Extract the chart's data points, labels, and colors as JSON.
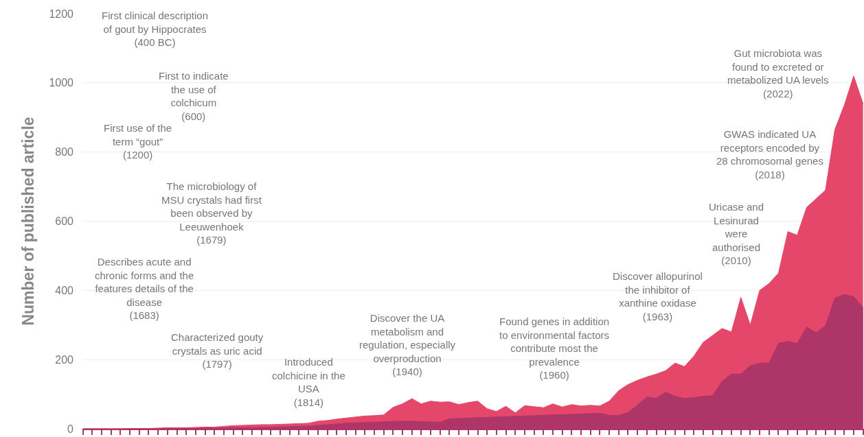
{
  "chart_data": {
    "type": "area",
    "ylabel": "Number of published article",
    "categories": [
      null,
      null,
      null,
      null,
      null,
      null,
      null,
      null,
      null,
      null,
      null,
      null,
      null,
      null,
      null,
      null,
      null,
      null,
      null,
      null,
      null,
      null,
      null,
      null,
      null,
      null,
      null,
      null,
      null,
      null,
      null,
      null,
      null,
      null,
      null,
      null,
      null,
      null,
      null,
      null,
      null,
      null,
      null,
      null,
      null,
      null,
      null,
      null,
      null,
      null,
      null,
      null,
      null,
      null,
      null,
      null,
      null,
      null,
      null,
      null,
      null,
      null,
      null,
      null,
      null,
      null,
      null,
      null,
      null,
      null,
      null,
      null,
      null,
      null,
      null,
      null,
      null,
      null,
      null,
      null,
      null,
      null,
      null,
      null
    ],
    "series": [
      {
        "color": "#e5476a",
        "values": [
          0,
          0,
          0,
          0,
          0,
          1,
          1,
          1,
          2,
          3,
          3,
          3,
          4,
          5,
          5,
          7,
          9,
          10,
          11,
          12,
          12,
          13,
          14,
          15,
          16,
          22,
          24,
          28,
          31,
          34,
          37,
          38,
          40,
          62,
          72,
          87,
          72,
          80,
          77,
          78,
          70,
          76,
          80,
          58,
          50,
          65,
          46,
          67,
          64,
          61,
          72,
          63,
          70,
          66,
          68,
          66,
          80,
          110,
          128,
          140,
          150,
          158,
          168,
          190,
          180,
          210,
          250,
          270,
          290,
          280,
          380,
          300,
          400,
          420,
          450,
          570,
          560,
          640,
          665,
          690,
          865,
          935,
          1020,
          940
        ]
      },
      {
        "color": "#ad3567",
        "values": [
          0,
          0,
          0,
          0,
          0,
          0,
          0,
          0,
          0,
          1,
          1,
          1,
          1,
          2,
          2,
          2,
          3,
          3,
          3,
          4,
          4,
          5,
          6,
          7,
          8,
          10,
          12,
          14,
          16,
          17,
          18,
          19,
          20,
          21,
          22,
          22,
          21,
          20,
          19,
          29,
          30,
          31,
          32,
          33,
          34,
          35,
          36,
          37,
          38,
          39,
          40,
          41,
          42,
          43,
          44,
          45,
          39,
          38,
          47,
          68,
          92,
          88,
          106,
          94,
          88,
          90,
          94,
          96,
          137,
          158,
          158,
          182,
          190,
          190,
          247,
          253,
          247,
          294,
          278,
          298,
          378,
          388,
          382,
          350
        ]
      }
    ],
    "ylim": [
      0,
      1200
    ],
    "yticks": [
      0,
      200,
      400,
      600,
      800,
      1000,
      1200
    ],
    "grid": "y",
    "tick_labels": "y",
    "annotations": [
      "First clinical description\nof gout by Hippocrates\n(400 BC)",
      "First to indicate\nthe use of\ncolchicum\n(600)",
      "First use of the\nterm “gout”\n(1200)",
      "The microbiology of\nMSU crystals had first\nbeen observed by\nLeeuwenhoek\n(1679)",
      "Describes acute and\nchronic forms and the\nfeatures details of the\ndisease\n(1683)",
      "Characterized gouty\ncrystals as uric acid\n(1797)",
      "Introduced\ncolchicine in the\nUSA\n(1814)",
      "Discover the UA\nmetabolism and\nregulation, especially\noverproduction\n(1940)",
      "Found genes in addition\nto environmental factors\ncontribute most the\nprevalence\n(1960)",
      "Discover allopurinol\nthe inhibitor of\nxanthine oxidase\n(1963)",
      "Uricase and\nLesinurad\nwere\nauthorised\n(2010)",
      "GWAS indicated UA\nreceptors encoded by\n28 chromosomal genes\n(2018)",
      "Gut microbiota was\nfound to excreted or\nmetabolized UA levels\n(2022)"
    ]
  }
}
